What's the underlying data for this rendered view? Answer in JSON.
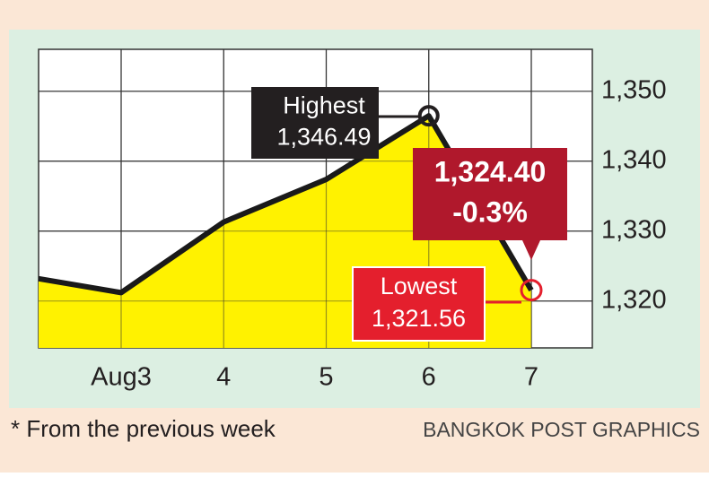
{
  "chart_data": {
    "type": "line",
    "categories": [
      null,
      "Aug3",
      "4",
      "5",
      "6",
      "7"
    ],
    "values": [
      1323.2,
      1321.2,
      1331.3,
      1337.4,
      1346.49,
      1321.56
    ],
    "color": "#1a1a1a",
    "area_color": "#fff200",
    "ylim": [
      1313.3,
      1356
    ],
    "yticks": [
      {
        "value": 1320,
        "label": "1,320"
      },
      {
        "value": 1330,
        "label": "1,330"
      },
      {
        "value": 1340,
        "label": "1,340"
      },
      {
        "value": 1350,
        "label": "1,350"
      }
    ],
    "grid": true,
    "annotations": [
      {
        "lines": [
          "Highest",
          "1,346.49"
        ],
        "color": "#231f20"
      },
      {
        "lines": [
          "1,324.40",
          "-0.3%"
        ],
        "color": "#b0182c"
      },
      {
        "lines": [
          "Lowest",
          "1,321.56"
        ],
        "color": "#e41f2d"
      }
    ],
    "footnote": "* From the previous week",
    "source": "BANGKOK POST GRAPHICS"
  }
}
